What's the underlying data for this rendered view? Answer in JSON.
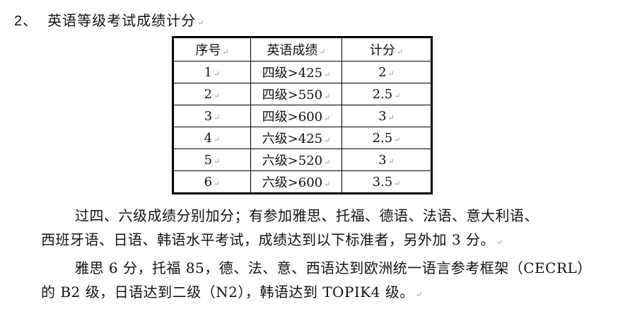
{
  "heading": {
    "number": "2、",
    "title": "英语等级考试成绩计分"
  },
  "table": {
    "headers": [
      "序号",
      "英语成绩",
      "计分"
    ],
    "rows": [
      [
        "1",
        "四级>425",
        "2"
      ],
      [
        "2",
        "四级>550",
        "2.5"
      ],
      [
        "3",
        "四级>600",
        "3"
      ],
      [
        "4",
        "六级>425",
        "2.5"
      ],
      [
        "5",
        "六级>520",
        "3"
      ],
      [
        "6",
        "六级>600",
        "3.5"
      ]
    ]
  },
  "paragraphs": [
    {
      "lines": [
        "过四、六级成绩分别加分；有参加雅思、托福、德语、法语、意大利语、",
        "西班牙语、日语、韩语水平考试，成绩达到以下标准者，另外加 3 分。"
      ]
    },
    {
      "lines": [
        "雅思 6 分，托福 85，德、法、意、西语达到欧洲统一语言参考框架（CECRL）",
        "的 B2 级，日语达到二级（N2），韩语达到 TOPIK4 级。"
      ]
    }
  ],
  "paragraph_mark": "↵"
}
